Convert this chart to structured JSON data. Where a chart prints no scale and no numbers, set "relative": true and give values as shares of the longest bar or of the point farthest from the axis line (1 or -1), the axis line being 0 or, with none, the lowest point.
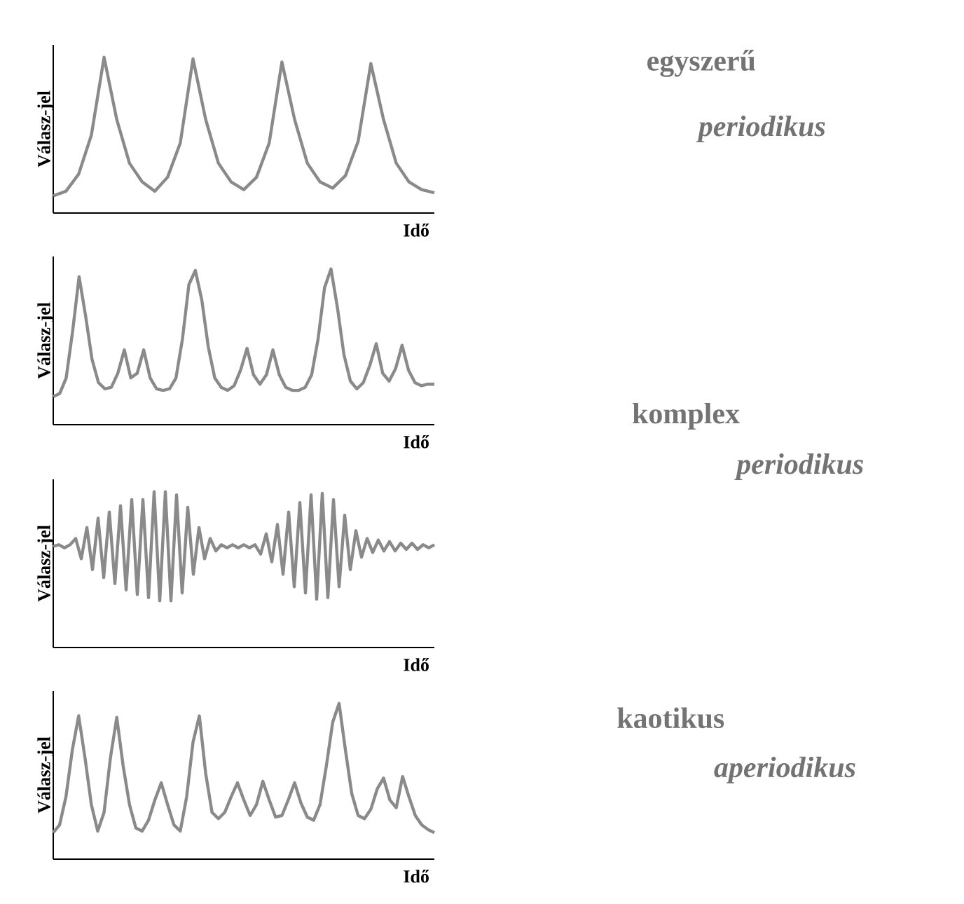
{
  "chart_data": [
    {
      "type": "line",
      "relative": true,
      "xlabel": "Idő",
      "ylabel": "Válasz-jel",
      "color": "#8a8a8a",
      "annotations": [
        "egyszerű",
        "periodikus"
      ],
      "categories": [
        null,
        null,
        null,
        null,
        null,
        null,
        null,
        null,
        null,
        null,
        null,
        null,
        null,
        null,
        null,
        null,
        null,
        null,
        null,
        null,
        null,
        null,
        null,
        null,
        null,
        null,
        null,
        null,
        null,
        null,
        null
      ],
      "values": [
        0.11,
        0.14,
        0.25,
        0.5,
        1.0,
        0.6,
        0.32,
        0.2,
        0.14,
        0.23,
        0.45,
        0.99,
        0.6,
        0.32,
        0.2,
        0.15,
        0.23,
        0.45,
        0.97,
        0.6,
        0.32,
        0.2,
        0.16,
        0.24,
        0.46,
        0.96,
        0.6,
        0.32,
        0.2,
        0.15,
        0.13
      ]
    },
    {
      "type": "line",
      "relative": true,
      "xlabel": "Idő",
      "ylabel": "Válasz-jel",
      "color": "#8a8a8a",
      "annotations": [
        "komplex",
        "periodikus"
      ],
      "categories": [
        null,
        null,
        null,
        null,
        null,
        null,
        null,
        null,
        null,
        null,
        null,
        null,
        null,
        null,
        null,
        null,
        null,
        null,
        null,
        null,
        null,
        null,
        null,
        null,
        null,
        null,
        null,
        null,
        null,
        null,
        null,
        null,
        null,
        null,
        null,
        null,
        null,
        null,
        null,
        null,
        null,
        null,
        null,
        null,
        null,
        null,
        null,
        null,
        null,
        null,
        null,
        null,
        null,
        null,
        null,
        null,
        null,
        null,
        null,
        null
      ],
      "values": [
        0.18,
        0.2,
        0.3,
        0.6,
        0.95,
        0.7,
        0.42,
        0.27,
        0.23,
        0.24,
        0.33,
        0.48,
        0.3,
        0.33,
        0.48,
        0.3,
        0.23,
        0.22,
        0.23,
        0.3,
        0.55,
        0.9,
        0.99,
        0.8,
        0.5,
        0.3,
        0.24,
        0.22,
        0.25,
        0.35,
        0.49,
        0.32,
        0.26,
        0.32,
        0.48,
        0.32,
        0.24,
        0.22,
        0.22,
        0.24,
        0.32,
        0.55,
        0.88,
        1.0,
        0.75,
        0.45,
        0.28,
        0.23,
        0.27,
        0.38,
        0.52,
        0.33,
        0.28,
        0.36,
        0.51,
        0.35,
        0.27,
        0.25,
        0.26,
        0.26
      ]
    },
    {
      "type": "line",
      "relative": true,
      "xlabel": "Idő",
      "ylabel": "Válasz-jel",
      "color": "#8a8a8a",
      "categories": [
        null,
        null,
        null,
        null,
        null,
        null,
        null,
        null,
        null,
        null,
        null,
        null,
        null,
        null,
        null,
        null,
        null,
        null,
        null,
        null,
        null,
        null,
        null,
        null,
        null,
        null,
        null,
        null,
        null,
        null,
        null,
        null,
        null,
        null,
        null,
        null,
        null,
        null,
        null,
        null,
        null,
        null,
        null,
        null,
        null,
        null,
        null,
        null,
        null,
        null,
        null,
        null,
        null,
        null,
        null,
        null,
        null,
        null,
        null,
        null,
        null,
        null,
        null,
        null,
        null,
        null,
        null,
        null,
        null
      ],
      "values": [
        0.65,
        0.66,
        0.64,
        0.66,
        0.7,
        0.57,
        0.77,
        0.5,
        0.83,
        0.45,
        0.87,
        0.41,
        0.91,
        0.37,
        0.95,
        0.34,
        0.95,
        0.32,
        1.0,
        0.3,
        1.0,
        0.3,
        0.98,
        0.35,
        0.9,
        0.47,
        0.77,
        0.57,
        0.7,
        0.62,
        0.66,
        0.64,
        0.66,
        0.64,
        0.66,
        0.64,
        0.66,
        0.6,
        0.73,
        0.55,
        0.79,
        0.47,
        0.87,
        0.39,
        0.93,
        0.35,
        0.98,
        0.31,
        0.99,
        0.32,
        0.95,
        0.39,
        0.85,
        0.5,
        0.75,
        0.58,
        0.7,
        0.61,
        0.69,
        0.62,
        0.68,
        0.62,
        0.67,
        0.63,
        0.67,
        0.63,
        0.66,
        0.64,
        0.66
      ]
    },
    {
      "type": "line",
      "relative": true,
      "xlabel": "Idő",
      "ylabel": "Válasz-jel",
      "color": "#8a8a8a",
      "annotations": [
        "kaotikus",
        "aperiodikus"
      ],
      "categories": [
        null,
        null,
        null,
        null,
        null,
        null,
        null,
        null,
        null,
        null,
        null,
        null,
        null,
        null,
        null,
        null,
        null,
        null,
        null,
        null,
        null,
        null,
        null,
        null,
        null,
        null,
        null,
        null,
        null,
        null,
        null,
        null,
        null,
        null,
        null,
        null,
        null,
        null,
        null,
        null,
        null,
        null,
        null,
        null,
        null,
        null,
        null,
        null,
        null,
        null,
        null,
        null,
        null,
        null,
        null,
        null,
        null,
        null,
        null,
        null,
        null
      ],
      "values": [
        0.17,
        0.22,
        0.4,
        0.7,
        0.92,
        0.65,
        0.35,
        0.18,
        0.3,
        0.65,
        0.91,
        0.6,
        0.35,
        0.2,
        0.18,
        0.25,
        0.38,
        0.49,
        0.35,
        0.22,
        0.18,
        0.4,
        0.75,
        0.92,
        0.55,
        0.3,
        0.26,
        0.3,
        0.4,
        0.49,
        0.38,
        0.28,
        0.35,
        0.5,
        0.38,
        0.27,
        0.28,
        0.38,
        0.49,
        0.36,
        0.27,
        0.25,
        0.35,
        0.6,
        0.88,
        1.0,
        0.7,
        0.42,
        0.28,
        0.26,
        0.32,
        0.45,
        0.52,
        0.38,
        0.33,
        0.53,
        0.4,
        0.28,
        0.22,
        0.19,
        0.17
      ]
    }
  ]
}
